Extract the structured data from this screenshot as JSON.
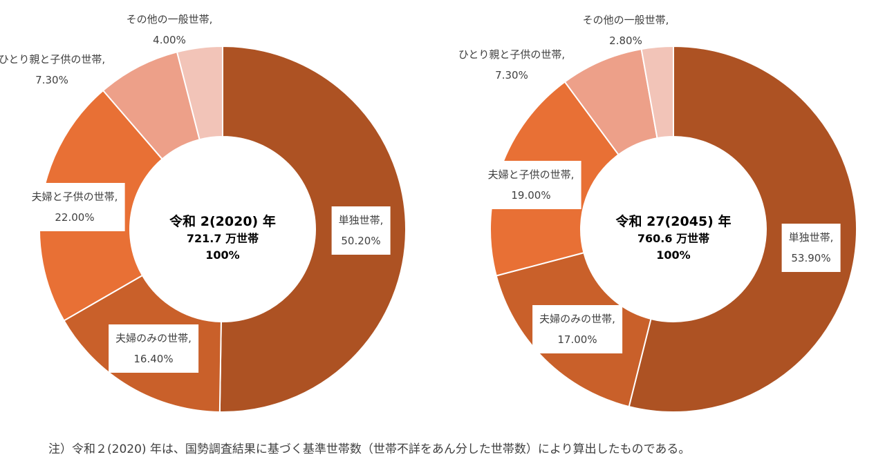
{
  "chart_data": [
    {
      "type": "pie",
      "donut": true,
      "center_title": "令和 2(2020) 年",
      "center_total": "721.7 万世帯",
      "center_percent": "100%",
      "categories": [
        "単独世帯",
        "夫婦のみの世帯",
        "夫婦と子供の世帯",
        "ひとり親と子供の世帯",
        "その他の一般世帯"
      ],
      "values": [
        50.2,
        16.4,
        22.0,
        7.3,
        4.0
      ],
      "labels": [
        "50.20%",
        "16.40%",
        "22.00%",
        "7.30%",
        "4.00%"
      ]
    },
    {
      "type": "pie",
      "donut": true,
      "center_title": "令和 27(2045) 年",
      "center_total": "760.6 万世帯",
      "center_percent": "100%",
      "categories": [
        "単独世帯",
        "夫婦のみの世帯",
        "夫婦と子供の世帯",
        "ひとり親と子供の世帯",
        "その他の一般世帯"
      ],
      "values": [
        53.9,
        17.0,
        19.0,
        7.3,
        2.8
      ],
      "labels": [
        "53.90%",
        "17.00%",
        "19.00%",
        "7.30%",
        "2.80%"
      ]
    }
  ],
  "colors": [
    "#AD5223",
    "#C9602A",
    "#E87035",
    "#EDA089",
    "#F2C4B8"
  ],
  "note": "注）令和２(2020) 年は、国勢調査結果に基づく基準世帯数（世帯不詳をあん分した世帯数）により算出したものである。"
}
